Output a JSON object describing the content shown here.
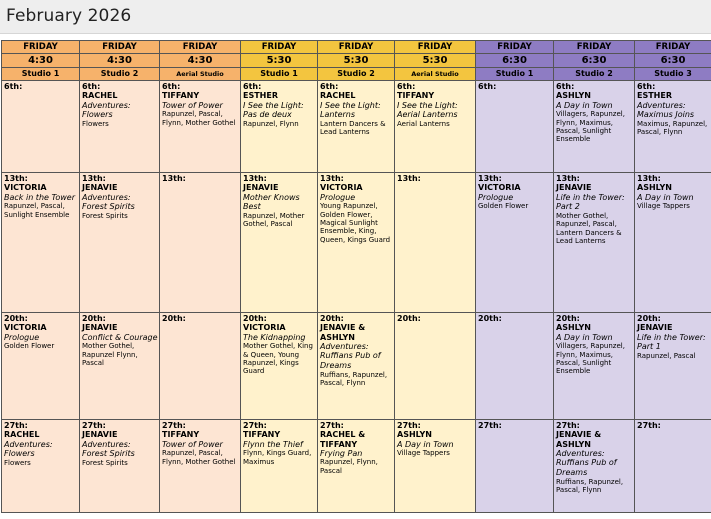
{
  "page_title": "February 2026",
  "columns": [
    {
      "day": "FRIDAY",
      "time": "4:30",
      "studio": "Studio 1",
      "color": "or"
    },
    {
      "day": "FRIDAY",
      "time": "4:30",
      "studio": "Studio 2",
      "color": "or"
    },
    {
      "day": "FRIDAY",
      "time": "4:30",
      "studio": "Aerial Studio",
      "color": "or"
    },
    {
      "day": "FRIDAY",
      "time": "5:30",
      "studio": "Studio 1",
      "color": "ye"
    },
    {
      "day": "FRIDAY",
      "time": "5:30",
      "studio": "Studio 2",
      "color": "ye"
    },
    {
      "day": "FRIDAY",
      "time": "5:30",
      "studio": "Aerial Studio",
      "color": "ye"
    },
    {
      "day": "FRIDAY",
      "time": "6:30",
      "studio": "Studio 1",
      "color": "pu"
    },
    {
      "day": "FRIDAY",
      "time": "6:30",
      "studio": "Studio 2",
      "color": "pu"
    },
    {
      "day": "FRIDAY",
      "time": "6:30",
      "studio": "Studio 3",
      "color": "pu"
    }
  ],
  "rows": [
    [
      {
        "date": "6th:",
        "name": "",
        "title": "",
        "cast": ""
      },
      {
        "date": "6th:",
        "name": "RACHEL",
        "title": "Adventures: Flowers",
        "cast": "Flowers"
      },
      {
        "date": "6th:",
        "name": "TIFFANY",
        "title": "Tower of Power",
        "cast": "Rapunzel, Pascal, Flynn, Mother Gothel"
      },
      {
        "date": "6th:",
        "name": "ESTHER",
        "title": "I See the Light: Pas de deux",
        "cast": "Rapunzel, Flynn"
      },
      {
        "date": "6th:",
        "name": "RACHEL",
        "title": "I See the Light: Lanterns",
        "cast": "Lantern Dancers & Lead Lanterns"
      },
      {
        "date": "6th:",
        "name": "TIFFANY",
        "title": "I See the Light: Aerial Lanterns",
        "cast": "Aerial Lanterns"
      },
      {
        "date": "6th:",
        "name": "",
        "title": "",
        "cast": ""
      },
      {
        "date": "6th:",
        "name": "ASHLYN",
        "title": "A Day in Town",
        "cast": "Villagers, Rapunzel, Flynn, Maximus, Pascal, Sunlight Ensemble"
      },
      {
        "date": "6th:",
        "name": "ESTHER",
        "title": "Adventures: Maximus Joins",
        "cast": "Maximus, Rapunzel, Pascal, Flynn"
      }
    ],
    [
      {
        "date": "13th:",
        "name": "VICTORIA",
        "title": "Back in the Tower",
        "cast": "Rapunzel, Pascal, Sunlight Ensemble"
      },
      {
        "date": "13th:",
        "name": "JENAVIE",
        "title": "Adventures: Forest Spirits",
        "cast": "Forest Spirits"
      },
      {
        "date": "13th:",
        "name": "",
        "title": "",
        "cast": ""
      },
      {
        "date": "13th:",
        "name": "JENAVIE",
        "title": "Mother Knows Best",
        "cast": "Rapunzel, Mother Gothel, Pascal"
      },
      {
        "date": "13th:",
        "name": "VICTORIA",
        "title": "Prologue",
        "cast": "Young Rapunzel, Golden Flower, Magical Sunlight Ensemble, King, Queen, Kings Guard"
      },
      {
        "date": "13th:",
        "name": "",
        "title": "",
        "cast": ""
      },
      {
        "date": "13th:",
        "name": "VICTORIA",
        "title": "Prologue",
        "cast": "Golden Flower"
      },
      {
        "date": "13th:",
        "name": "JENAVIE",
        "title": "Life in the Tower: Part 2",
        "cast": "Mother Gothel, Rapunzel, Pascal, Lantern Dancers & Lead Lanterns"
      },
      {
        "date": "13th:",
        "name": "ASHLYN",
        "title": "A Day in Town",
        "cast": "Village Tappers"
      }
    ],
    [
      {
        "date": "20th:",
        "name": "VICTORIA",
        "title": "Prologue",
        "cast": "Golden Flower"
      },
      {
        "date": "20th:",
        "name": "JENAVIE",
        "title": "Conflict & Courage",
        "cast": "Mother Gothel, Rapunzel Flynn, Pascal"
      },
      {
        "date": "20th:",
        "name": "",
        "title": "",
        "cast": ""
      },
      {
        "date": "20th:",
        "name": "VICTORIA",
        "title": "The Kidnapping",
        "cast": "Mother Gothel, King & Queen, Young Rapunzel, Kings Guard"
      },
      {
        "date": "20th:",
        "name": "JENAVIE & ASHLYN",
        "title": "Adventures: Ruffians Pub of Dreams",
        "cast": "Ruffians, Rapunzel, Pascal, Flynn"
      },
      {
        "date": "20th:",
        "name": "",
        "title": "",
        "cast": ""
      },
      {
        "date": "20th:",
        "name": "",
        "title": "",
        "cast": ""
      },
      {
        "date": "20th:",
        "name": "ASHLYN",
        "title": "A Day in Town",
        "cast": "Villagers, Rapunzel, Flynn, Maximus, Pascal, Sunlight Ensemble"
      },
      {
        "date": "20th:",
        "name": "JENAVIE",
        "title": "Life in the Tower: Part 1",
        "cast": "Rapunzel, Pascal"
      }
    ],
    [
      {
        "date": "27th:",
        "name": "RACHEL",
        "title": "Adventures: Flowers",
        "cast": "Flowers"
      },
      {
        "date": "27th:",
        "name": "JENAVIE",
        "title": "Adventures: Forest Spirits",
        "cast": "Forest Spirits"
      },
      {
        "date": "27th:",
        "name": "TIFFANY",
        "title": "Tower of Power",
        "cast": "Rapunzel, Pascal, Flynn, Mother Gothel"
      },
      {
        "date": "27th:",
        "name": "TIFFANY",
        "title": "Flynn the Thief",
        "cast": "Flynn, Kings Guard, Maximus"
      },
      {
        "date": "27th:",
        "name": "RACHEL & TIFFANY",
        "title": "Frying Pan",
        "cast": "Rapunzel, Flynn, Pascal"
      },
      {
        "date": "27th:",
        "name": "ASHLYN",
        "title": "A Day in Town",
        "cast": "Village Tappers"
      },
      {
        "date": "27th:",
        "name": "",
        "title": "",
        "cast": ""
      },
      {
        "date": "27th:",
        "name": "JENAVIE & ASHLYN",
        "title": "Adventures: Ruffians Pub of Dreams",
        "cast": "Ruffians, Rapunzel, Pascal, Flynn"
      },
      {
        "date": "27th:",
        "name": "",
        "title": "",
        "cast": ""
      }
    ]
  ]
}
